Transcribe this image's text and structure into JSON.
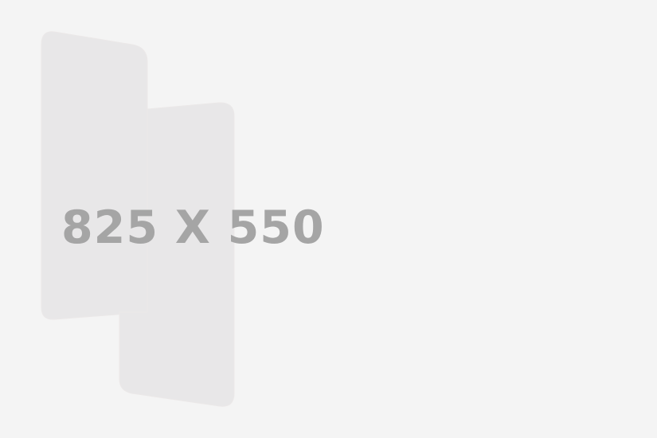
{
  "placeholder": {
    "dimensions_label": "825 X 550",
    "colors": {
      "background": "#f4f4f4",
      "shape_fill": "#e8e7e8",
      "shape_stroke": "#ebe8e8",
      "text": "#a5a5a5"
    }
  }
}
